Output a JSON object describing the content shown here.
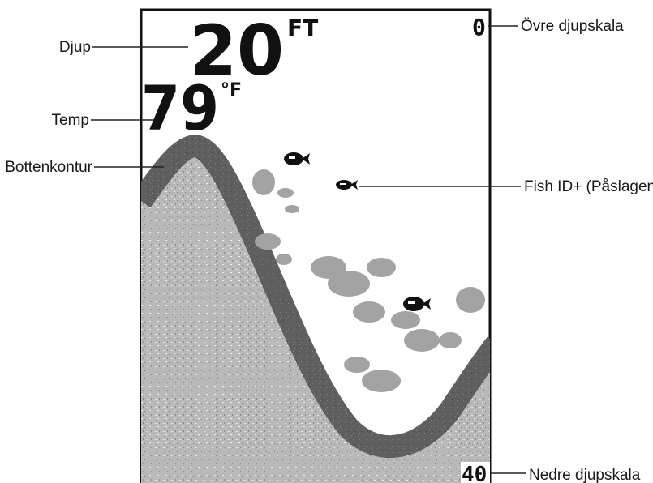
{
  "display": {
    "depth_value": "20",
    "depth_unit": "FT",
    "temp_value": "79",
    "temp_unit": "°F",
    "upper_scale": "0",
    "lower_scale": "40"
  },
  "callouts": {
    "depth": "Djup",
    "temp": "Temp",
    "bottom_contour": "Bottenkontur",
    "fish_id": "Fish ID+ (Påslagen)",
    "upper_scale": "Övre djupskala",
    "lower_scale": "Nedre djupskala"
  },
  "colors": {
    "frame": "#111111",
    "bottom_band": "#5e5e5e",
    "bottom_fill": "#b7b7b7",
    "clutter": "#9a9a9a",
    "fish": "#111111"
  }
}
